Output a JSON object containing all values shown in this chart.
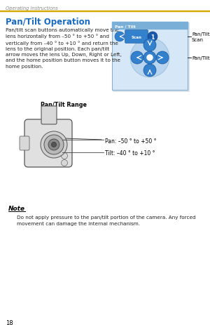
{
  "bg_color": "#ffffff",
  "page_width": 3.0,
  "page_height": 4.64,
  "header_text": "Operating Instructions",
  "header_color": "#888888",
  "yellow_line_color": "#D4A800",
  "title": "Pan/Tilt Operation",
  "title_color": "#1a6bbf",
  "body_text": "Pan/tilt scan buttons automatically move the\nlens horizontally from –50 ° to +50 ° and\nvertically from –40 ° to +10 ° and return the\nlens to the original position. Each pan/tilt\narrow moves the lens Up, Down, Right or Left,\nand the home position button moves it to the\nhome position.",
  "body_color": "#222222",
  "pantilt_range_label": "Pan/Tilt Range",
  "pan_label": "Pan: –50 ° to +50 °",
  "tilt_label": "Tilt: –40 ° to +10 °",
  "note_title": "Note",
  "note_body": "Do not apply pressure to the pan/tilt portion of the camera. Any forced\nmovement can damage the internal mechanism.",
  "pantilt_scan_label": "Pan/Tilt\nScan",
  "pantilt_label": "Pan/Tilt",
  "page_num": "18",
  "diagram_bg": "#d6e8f7",
  "diagram_header_bg": "#7ab0d8",
  "btn_color": "#3380cc",
  "btn_outline": "#1a5599",
  "scan_bg": "#3380cc",
  "number_badge_color": "#1a5aaa",
  "note_title_color": "#000000"
}
